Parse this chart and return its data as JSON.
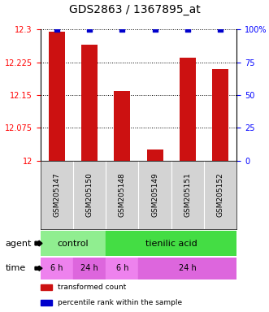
{
  "title": "GDS2863 / 1367895_at",
  "samples": [
    "GSM205147",
    "GSM205150",
    "GSM205148",
    "GSM205149",
    "GSM205151",
    "GSM205152"
  ],
  "bar_values": [
    12.295,
    12.265,
    12.16,
    12.025,
    12.235,
    12.21
  ],
  "percentile_values": [
    100,
    100,
    100,
    100,
    100,
    100
  ],
  "ylim_left": [
    12,
    12.3
  ],
  "ylim_right": [
    0,
    100
  ],
  "yticks_left": [
    12,
    12.075,
    12.15,
    12.225,
    12.3
  ],
  "yticks_right": [
    0,
    25,
    50,
    75,
    100
  ],
  "ytick_labels_left": [
    "12",
    "12.075",
    "12.15",
    "12.225",
    "12.3"
  ],
  "ytick_labels_right": [
    "0",
    "25",
    "50",
    "75",
    "100%"
  ],
  "bar_color": "#cc1111",
  "dot_color": "#0000cc",
  "grid_color": "#000000",
  "background_color": "#ffffff",
  "agent_groups": [
    {
      "label": "control",
      "span": [
        0,
        2
      ],
      "color": "#90ee90"
    },
    {
      "label": "tienilic acid",
      "span": [
        2,
        6
      ],
      "color": "#44dd44"
    }
  ],
  "time_groups": [
    {
      "label": "6 h",
      "span": [
        0,
        1
      ],
      "color": "#ee82ee"
    },
    {
      "label": "24 h",
      "span": [
        1,
        2
      ],
      "color": "#dd66dd"
    },
    {
      "label": "6 h",
      "span": [
        2,
        3
      ],
      "color": "#ee82ee"
    },
    {
      "label": "24 h",
      "span": [
        3,
        6
      ],
      "color": "#dd66dd"
    }
  ],
  "legend_items": [
    {
      "color": "#cc1111",
      "label": "transformed count"
    },
    {
      "color": "#0000cc",
      "label": "percentile rank within the sample"
    }
  ]
}
